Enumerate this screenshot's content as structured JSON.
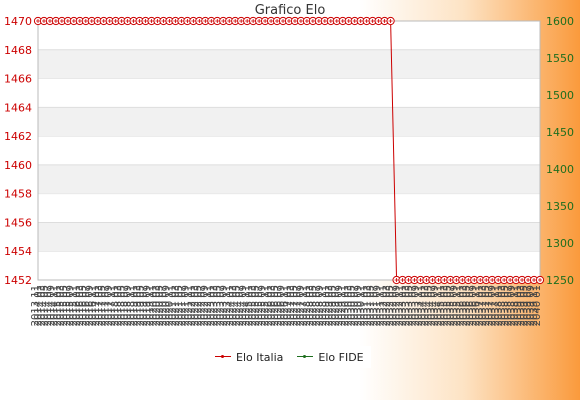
{
  "chart_data": {
    "type": "line",
    "title": "Grafico Elo",
    "y_left": {
      "ylim": [
        1452,
        1470
      ],
      "ticks": [
        1452,
        1454,
        1456,
        1458,
        1460,
        1462,
        1464,
        1466,
        1468,
        1470
      ],
      "color": "#cc0000"
    },
    "y_right": {
      "ylim": [
        1250,
        1600
      ],
      "ticks": [
        1250,
        1300,
        1350,
        1400,
        1450,
        1500,
        1550,
        1600
      ],
      "color": "#1e6e1e"
    },
    "x_tick_labels": [
      "2013 11",
      "2014 01",
      "2014 03",
      "2014 05",
      "2014 07",
      "2014 09",
      "2014 11",
      "2015 01",
      "2015 03",
      "2015 05",
      "2015 07",
      "2015 09",
      "2015 11",
      "2016 01",
      "2016 03",
      "2016 05",
      "2016 07",
      "2016 09",
      "2016 11",
      "2017 01",
      "2017 03",
      "2017 05",
      "2017 07",
      "2017 09",
      "2017 11",
      "2018 01",
      "2018 03",
      "2018 05",
      "2018 07",
      "2018 09",
      "2018 11",
      "2019 01",
      "2019 03",
      "2019 05",
      "2019 07",
      "2019 09",
      "2019 11",
      "2020 01",
      "2020 03",
      "2020 05",
      "2020 07",
      "2020 09",
      "2020 11",
      "2021 01",
      "2021 03",
      "2021 05",
      "2021 07",
      "2021 09",
      "2021 11",
      "2022 01",
      "2022 03",
      "2022 05",
      "2022 07",
      "2022 09",
      "2022 11",
      "2023 01",
      "2023 03",
      "2023 05",
      "2023 07",
      "2023 09",
      "2023 11",
      "2024 01",
      "2024 03",
      "2024 05",
      "2024 07",
      "2024 09",
      "2024 11",
      "2025 01",
      "2025 03",
      "2025 05",
      "2025 07",
      "2025 09",
      "2025 11",
      "2026 01",
      "2026 03",
      "2026 05",
      "2026 07",
      "2026 09",
      "2026 11",
      "2027 01",
      "2027 03",
      "2027 05",
      "2027 07",
      "2027 09",
      "2027 11",
      "2028 01",
      "2028 03",
      "2028 05",
      "2028 07",
      "2028 09",
      "2028 11",
      "2029 01",
      "2029 03",
      "2029 05",
      "2029 07",
      "2029 09",
      "2029 11",
      "2030 01",
      "2030 03",
      "2030 05",
      "2030 07",
      "2030 09",
      "2030 11",
      "2031 01",
      "2031 03",
      "2031 05",
      "2031 07",
      "2031 09",
      "2031 11",
      "2032 01",
      "2032 03",
      "2032 05",
      "2032 07",
      "2032 09",
      "2032 11",
      "2033 01",
      "2033 03",
      "2033 05",
      "2033 07",
      "2033 09",
      "2033 11",
      "2034 01",
      "2034 03",
      "2034 05",
      "2034 07",
      "2034 09",
      "2034 11",
      "2035 01",
      "2035 03",
      "2035 05",
      "2035 07",
      "2035 09",
      "2035 11",
      "2036 01",
      "2036 03",
      "2036 05",
      "2036 07",
      "2036 09",
      "2036 11",
      "2037 01",
      "2037 03",
      "2037 05",
      "2037 07",
      "2037 09",
      "2037 11",
      "2038 01",
      "2038 03",
      "2038 05",
      "2038 07",
      "2038 09",
      "2038 11",
      "2039 01",
      "2039 03",
      "2039 05",
      "2039 07",
      "2039 09",
      "2039 11",
      "2040 01"
    ],
    "series": [
      {
        "name": "Elo Italia",
        "axis": "left",
        "color": "#cc0000",
        "values": [
          1470,
          1470,
          1470,
          1470,
          1470,
          1470,
          1470,
          1470,
          1470,
          1470,
          1470,
          1470,
          1470,
          1470,
          1470,
          1470,
          1470,
          1470,
          1470,
          1470,
          1470,
          1470,
          1470,
          1470,
          1470,
          1470,
          1470,
          1470,
          1470,
          1470,
          1470,
          1470,
          1470,
          1470,
          1470,
          1470,
          1470,
          1470,
          1470,
          1470,
          1470,
          1470,
          1470,
          1470,
          1470,
          1470,
          1470,
          1470,
          1470,
          1470,
          1470,
          1470,
          1470,
          1470,
          1470,
          1470,
          1470,
          1470,
          1470,
          1470,
          1452,
          1452,
          1452,
          1452,
          1452,
          1452,
          1452,
          1452,
          1452,
          1452,
          1452,
          1452,
          1452,
          1452,
          1452,
          1452,
          1452,
          1452,
          1452,
          1452,
          1452,
          1452,
          1452,
          1452,
          1452
        ]
      },
      {
        "name": "Elo FIDE",
        "axis": "right",
        "values": [
          null,
          null,
          null,
          null,
          null,
          null,
          null,
          null,
          null,
          null,
          null,
          null,
          null,
          null,
          null,
          null,
          null,
          null,
          null,
          null,
          null,
          null,
          null,
          null,
          null,
          null,
          null,
          null,
          null,
          null,
          null,
          null,
          null,
          null,
          null,
          null,
          null,
          null,
          null,
          null,
          null,
          null,
          null,
          null,
          null,
          null,
          null,
          null,
          null,
          null,
          null,
          null,
          null,
          null,
          null,
          null,
          null,
          null,
          null,
          null,
          null,
          null,
          null,
          null,
          null,
          null,
          null,
          null,
          null,
          null,
          null,
          null,
          null,
          null,
          null,
          null,
          null,
          null,
          null,
          null,
          null,
          null,
          null,
          null,
          null,
          null,
          null,
          null,
          null,
          null,
          null,
          null,
          null,
          null,
          null,
          null,
          null,
          null,
          null,
          null,
          null,
          null,
          null,
          null,
          null,
          null,
          null,
          null,
          null,
          null,
          null,
          null,
          null,
          null,
          null,
          null,
          null,
          null,
          null,
          null,
          null,
          null,
          null,
          null,
          null,
          null,
          null,
          null,
          null,
          null,
          null,
          null,
          null,
          null,
          null,
          null,
          null,
          null,
          null,
          null,
          null,
          null,
          null,
          null,
          null,
          null,
          null,
          null,
          null,
          null,
          null,
          null,
          null,
          null,
          null,
          null,
          null,
          null,
          null,
          null,
          null,
          null,
          null,
          null,
          null
        ],
        "color": "#1e6e1e"
      }
    ],
    "legend": {
      "position": "bottom-center",
      "items": [
        "Elo Italia",
        "Elo FIDE"
      ]
    },
    "grid": "horizontal bands"
  }
}
